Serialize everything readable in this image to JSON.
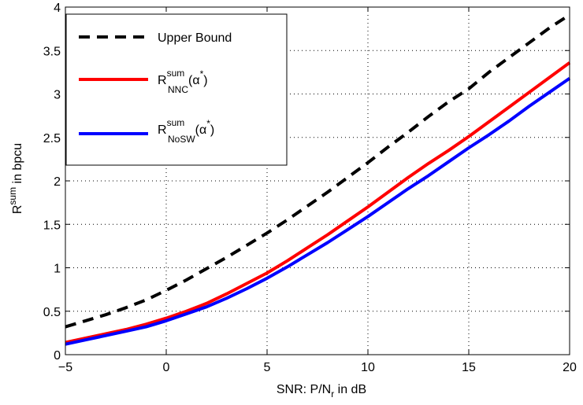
{
  "chart_data": {
    "type": "line",
    "xlabel": {
      "prefix": "SNR: P/N",
      "sub": "r",
      "suffix": " in dB"
    },
    "ylabel": {
      "prefix": "R",
      "sup": "sum",
      "suffix": " in bpcu"
    },
    "xlim": [
      -5,
      20
    ],
    "ylim": [
      0,
      4
    ],
    "xticks": [
      -5,
      0,
      5,
      10,
      15,
      20
    ],
    "yticks": [
      0,
      0.5,
      1,
      1.5,
      2,
      2.5,
      3,
      3.5,
      4
    ],
    "xtick_labels": [
      "−5",
      "0",
      "5",
      "10",
      "15",
      "20"
    ],
    "ytick_labels": [
      "0",
      "0.5",
      "1",
      "1.5",
      "2",
      "2.5",
      "3",
      "3.5",
      "4"
    ],
    "grid": true,
    "legend_position": "top-left",
    "series": [
      {
        "legend_text": "Upper Bound",
        "color": "#000000",
        "style": "dashed",
        "x": [
          -5,
          -4,
          -3,
          -2,
          -1,
          0,
          1,
          2,
          3,
          4,
          5,
          6,
          7,
          8,
          9,
          10,
          11,
          12,
          13,
          14,
          15,
          16,
          17,
          18,
          19,
          20
        ],
        "y": [
          0.32,
          0.39,
          0.46,
          0.54,
          0.63,
          0.74,
          0.86,
          0.99,
          1.12,
          1.26,
          1.4,
          1.55,
          1.71,
          1.87,
          2.04,
          2.21,
          2.39,
          2.56,
          2.74,
          2.91,
          3.06,
          3.25,
          3.42,
          3.59,
          3.76,
          3.91
        ]
      },
      {
        "legend_base": "R",
        "legend_sup": "sum",
        "legend_sub": "NNC",
        "legend_arg": "(α",
        "legend_arg_sup": "*",
        "legend_close": ")",
        "color": "#ff0000",
        "style": "solid",
        "x": [
          -5,
          -4,
          -3,
          -2,
          -1,
          0,
          1,
          2,
          3,
          4,
          5,
          6,
          7,
          8,
          9,
          10,
          11,
          12,
          13,
          14,
          15,
          16,
          17,
          18,
          19,
          20
        ],
        "y": [
          0.14,
          0.19,
          0.24,
          0.29,
          0.35,
          0.42,
          0.5,
          0.59,
          0.7,
          0.82,
          0.94,
          1.08,
          1.23,
          1.38,
          1.54,
          1.7,
          1.87,
          2.04,
          2.2,
          2.35,
          2.51,
          2.68,
          2.85,
          3.02,
          3.19,
          3.36
        ]
      },
      {
        "legend_base": "R",
        "legend_sup": "sum",
        "legend_sub": "NoSW",
        "legend_arg": "(α",
        "legend_arg_sup": "*",
        "legend_close": ")",
        "color": "#0000ff",
        "style": "solid",
        "x": [
          -5,
          -4,
          -3,
          -2,
          -1,
          0,
          1,
          2,
          3,
          4,
          5,
          6,
          7,
          8,
          9,
          10,
          11,
          12,
          13,
          14,
          15,
          16,
          17,
          18,
          19,
          20
        ],
        "y": [
          0.12,
          0.17,
          0.22,
          0.27,
          0.32,
          0.39,
          0.47,
          0.55,
          0.65,
          0.76,
          0.88,
          1.01,
          1.15,
          1.29,
          1.44,
          1.59,
          1.75,
          1.91,
          2.06,
          2.22,
          2.38,
          2.53,
          2.69,
          2.86,
          3.02,
          3.18
        ]
      }
    ]
  }
}
